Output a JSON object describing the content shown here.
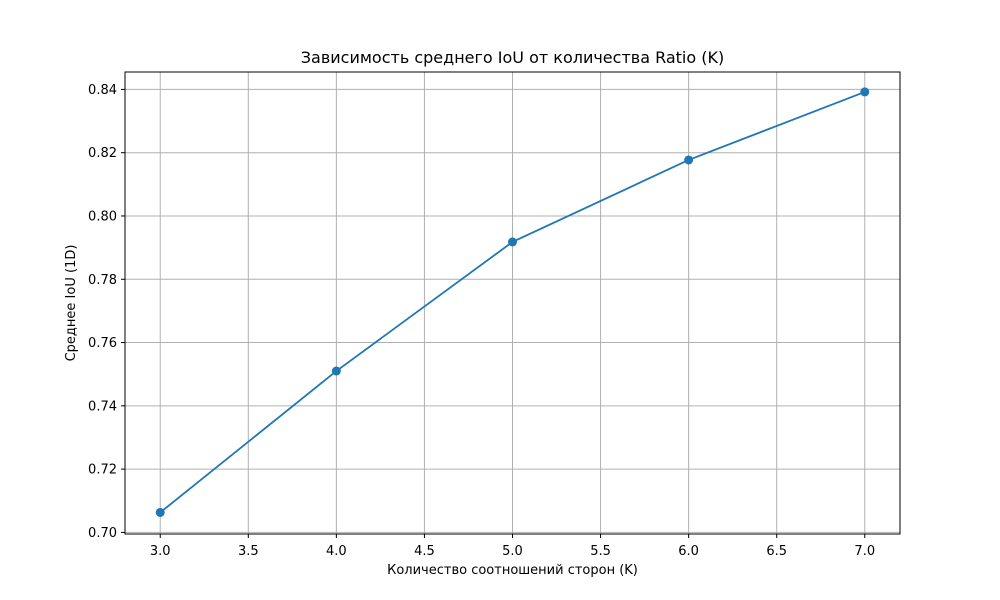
{
  "chart_data": {
    "type": "line",
    "title": "Зависимость среднего IoU от количества Ratio (K)",
    "xlabel": "Количество соотношений сторон (K)",
    "ylabel": "Среднее IoU (1D)",
    "xlim": [
      2.8,
      7.2
    ],
    "ylim": [
      0.6995,
      0.8455
    ],
    "xticks": [
      3.0,
      3.5,
      4.0,
      4.5,
      5.0,
      5.5,
      6.0,
      6.5,
      7.0
    ],
    "xtick_labels": [
      "3.0",
      "3.5",
      "4.0",
      "4.5",
      "5.0",
      "5.5",
      "6.0",
      "6.5",
      "7.0"
    ],
    "yticks": [
      0.7,
      0.72,
      0.74,
      0.76,
      0.78,
      0.8,
      0.82,
      0.84
    ],
    "ytick_labels": [
      "0.70",
      "0.72",
      "0.74",
      "0.76",
      "0.78",
      "0.80",
      "0.82",
      "0.84"
    ],
    "grid": true,
    "color": "#1f77b4",
    "series": [
      {
        "x": [
          3,
          4,
          5,
          6,
          7
        ],
        "values": [
          0.7063,
          0.751,
          0.7918,
          0.8177,
          0.8392
        ]
      }
    ]
  }
}
